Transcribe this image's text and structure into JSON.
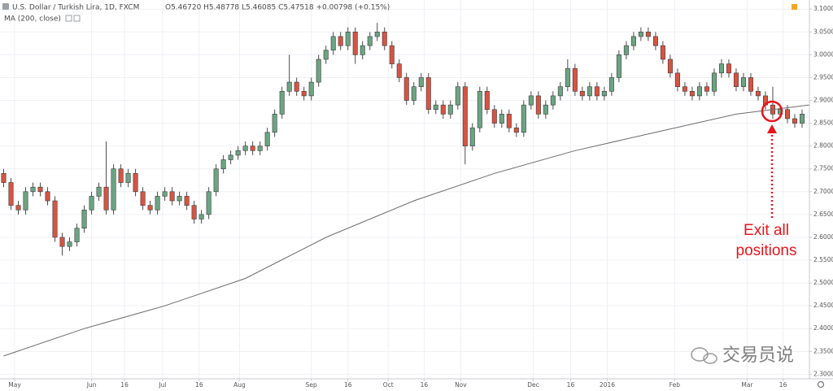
{
  "chart_data": {
    "type": "candlestick",
    "title": "U.S. Dollar / Turkish Lira, 1D, FXCM",
    "ohlc_text": "O5.46720 H5.48778 L5.46085 C5.47518 +0.00798 (+0.15%)",
    "up_color": "#6ba583",
    "down_color": "#d75442",
    "open": [
      2.74,
      2.72,
      2.67,
      2.66,
      2.7,
      2.71,
      2.7,
      2.68,
      2.6,
      2.58,
      2.59,
      2.62,
      2.66,
      2.69,
      2.71,
      2.66,
      2.75,
      2.72,
      2.74,
      2.7,
      2.67,
      2.66,
      2.69,
      2.7,
      2.68,
      2.69,
      2.67,
      2.64,
      2.65,
      2.7,
      2.75,
      2.77,
      2.78,
      2.79,
      2.8,
      2.79,
      2.8,
      2.83,
      2.87,
      2.92,
      2.94,
      2.92,
      2.91,
      2.94,
      2.99,
      3.01,
      3.04,
      3.02,
      3.05,
      3.0,
      3.02,
      3.04,
      3.05,
      3.02,
      2.98,
      2.95,
      2.9,
      2.93,
      2.95,
      2.88,
      2.89,
      2.87,
      2.89,
      2.93,
      2.8,
      2.84,
      2.92,
      2.88,
      2.85,
      2.87,
      2.84,
      2.83,
      2.89,
      2.91,
      2.87,
      2.89,
      2.91,
      2.93,
      2.97,
      2.92,
      2.91,
      2.93,
      2.91,
      2.92,
      2.95,
      3.0,
      3.02,
      3.04,
      3.05,
      3.04,
      3.02,
      2.99,
      2.96,
      2.93,
      2.92,
      2.91,
      2.93,
      2.92,
      2.96,
      2.98,
      2.96,
      2.93,
      2.95,
      2.92,
      2.91,
      2.89,
      2.87,
      2.88,
      2.86,
      2.85
    ],
    "high": [
      2.75,
      2.73,
      2.68,
      2.71,
      2.72,
      2.72,
      2.71,
      2.69,
      2.61,
      2.6,
      2.63,
      2.67,
      2.7,
      2.72,
      2.81,
      2.76,
      2.76,
      2.75,
      2.75,
      2.71,
      2.68,
      2.7,
      2.71,
      2.71,
      2.7,
      2.7,
      2.68,
      2.66,
      2.71,
      2.76,
      2.78,
      2.79,
      2.8,
      2.81,
      2.81,
      2.81,
      2.84,
      2.88,
      2.93,
      3.0,
      2.95,
      2.93,
      2.95,
      3.0,
      3.02,
      3.05,
      3.05,
      3.06,
      3.06,
      3.03,
      3.05,
      3.07,
      3.06,
      3.03,
      2.99,
      2.96,
      2.94,
      2.96,
      2.96,
      2.9,
      2.9,
      2.9,
      2.94,
      2.94,
      2.85,
      2.93,
      2.93,
      2.89,
      2.88,
      2.88,
      2.85,
      2.9,
      2.92,
      2.92,
      2.9,
      2.92,
      2.94,
      2.99,
      2.98,
      2.93,
      2.94,
      2.94,
      2.93,
      2.96,
      3.01,
      3.03,
      3.05,
      3.06,
      3.06,
      3.05,
      3.03,
      3.0,
      2.97,
      2.94,
      2.93,
      2.94,
      2.94,
      2.97,
      2.99,
      2.99,
      2.97,
      2.96,
      2.96,
      2.93,
      2.92,
      2.93,
      2.89,
      2.89,
      2.87,
      2.88
    ],
    "low": [
      2.71,
      2.66,
      2.65,
      2.65,
      2.69,
      2.69,
      2.67,
      2.59,
      2.56,
      2.57,
      2.58,
      2.61,
      2.65,
      2.68,
      2.65,
      2.65,
      2.71,
      2.71,
      2.69,
      2.66,
      2.65,
      2.65,
      2.68,
      2.67,
      2.67,
      2.66,
      2.63,
      2.63,
      2.64,
      2.69,
      2.74,
      2.76,
      2.77,
      2.78,
      2.78,
      2.78,
      2.79,
      2.82,
      2.86,
      2.91,
      2.91,
      2.9,
      2.9,
      2.93,
      2.98,
      3.0,
      3.01,
      3.01,
      2.98,
      2.99,
      3.01,
      3.03,
      3.01,
      2.97,
      2.94,
      2.89,
      2.89,
      2.92,
      2.87,
      2.87,
      2.86,
      2.86,
      2.88,
      2.76,
      2.79,
      2.83,
      2.87,
      2.84,
      2.84,
      2.83,
      2.82,
      2.82,
      2.88,
      2.86,
      2.86,
      2.88,
      2.9,
      2.92,
      2.91,
      2.9,
      2.9,
      2.9,
      2.9,
      2.91,
      2.94,
      2.99,
      3.01,
      3.03,
      3.03,
      3.01,
      2.98,
      2.95,
      2.92,
      2.91,
      2.9,
      2.9,
      2.91,
      2.91,
      2.95,
      2.95,
      2.92,
      2.92,
      2.91,
      2.9,
      2.88,
      2.86,
      2.86,
      2.85,
      2.84,
      2.84
    ],
    "close": [
      2.72,
      2.67,
      2.66,
      2.7,
      2.71,
      2.7,
      2.68,
      2.6,
      2.58,
      2.59,
      2.62,
      2.66,
      2.69,
      2.71,
      2.66,
      2.75,
      2.72,
      2.74,
      2.7,
      2.67,
      2.66,
      2.69,
      2.7,
      2.68,
      2.69,
      2.67,
      2.64,
      2.65,
      2.7,
      2.75,
      2.77,
      2.78,
      2.79,
      2.8,
      2.79,
      2.8,
      2.83,
      2.87,
      2.92,
      2.94,
      2.92,
      2.91,
      2.94,
      2.99,
      3.01,
      3.04,
      3.02,
      3.05,
      3.0,
      3.02,
      3.04,
      3.05,
      3.02,
      2.98,
      2.95,
      2.9,
      2.93,
      2.95,
      2.88,
      2.89,
      2.87,
      2.89,
      2.93,
      2.8,
      2.84,
      2.92,
      2.88,
      2.85,
      2.87,
      2.84,
      2.83,
      2.89,
      2.91,
      2.87,
      2.89,
      2.91,
      2.93,
      2.97,
      2.92,
      2.91,
      2.93,
      2.91,
      2.92,
      2.95,
      3.0,
      3.02,
      3.04,
      3.05,
      3.04,
      3.02,
      2.99,
      2.96,
      2.93,
      2.92,
      2.91,
      2.93,
      2.92,
      2.96,
      2.98,
      2.96,
      2.93,
      2.95,
      2.92,
      2.91,
      2.89,
      2.87,
      2.88,
      2.86,
      2.85,
      2.87
    ],
    "ma": {
      "name": "MA (200, close)",
      "color": "#6b6b6b",
      "x": [
        0,
        11,
        22,
        33,
        44,
        56,
        67,
        78,
        89,
        100,
        110
      ],
      "values": [
        2.34,
        2.4,
        2.45,
        2.51,
        2.6,
        2.68,
        2.74,
        2.79,
        2.83,
        2.87,
        2.89
      ]
    },
    "xlim": [
      -0.5,
      110
    ],
    "xticks": [
      {
        "value": 1.5,
        "label": "May"
      },
      {
        "value": 12,
        "label": "Jun"
      },
      {
        "value": 16.5,
        "label": "16"
      },
      {
        "value": 21.7,
        "label": "Jul"
      },
      {
        "value": 26.7,
        "label": "16"
      },
      {
        "value": 32.2,
        "label": "Aug"
      },
      {
        "value": 42,
        "label": "Sep"
      },
      {
        "value": 47,
        "label": "16"
      },
      {
        "value": 52.5,
        "label": "Oct"
      },
      {
        "value": 57.4,
        "label": "16"
      },
      {
        "value": 62.4,
        "label": "Nov"
      },
      {
        "value": 72.3,
        "label": "Dec"
      },
      {
        "value": 77.4,
        "label": "16"
      },
      {
        "value": 82.4,
        "label": "2016"
      },
      {
        "value": 91.6,
        "label": "Feb"
      },
      {
        "value": 101.5,
        "label": "Mar"
      },
      {
        "value": 106.4,
        "label": "16"
      }
    ],
    "ylim": [
      2.29,
      3.12
    ],
    "yticks": [
      {
        "value": 2.3,
        "label": "2.30000"
      },
      {
        "value": 2.35,
        "label": "2.35000"
      },
      {
        "value": 2.4,
        "label": "2.40000"
      },
      {
        "value": 2.45,
        "label": "2.45000"
      },
      {
        "value": 2.5,
        "label": "2.50000"
      },
      {
        "value": 2.55,
        "label": "2.55000"
      },
      {
        "value": 2.6,
        "label": "2.60000"
      },
      {
        "value": 2.65,
        "label": "2.65000"
      },
      {
        "value": 2.7,
        "label": "2.70000"
      },
      {
        "value": 2.75,
        "label": "2.75000"
      },
      {
        "value": 2.8,
        "label": "2.80000"
      },
      {
        "value": 2.85,
        "label": "2.85000"
      },
      {
        "value": 2.9,
        "label": "2.90000"
      },
      {
        "value": 2.95,
        "label": "2.95000"
      },
      {
        "value": 3.0,
        "label": "3.00000"
      },
      {
        "value": 3.05,
        "label": "3.05000"
      },
      {
        "value": 3.1,
        "label": "3.10000"
      }
    ],
    "grid": true,
    "annotation": [
      "Exit all",
      "positions"
    ],
    "watermark": "交易员说"
  }
}
